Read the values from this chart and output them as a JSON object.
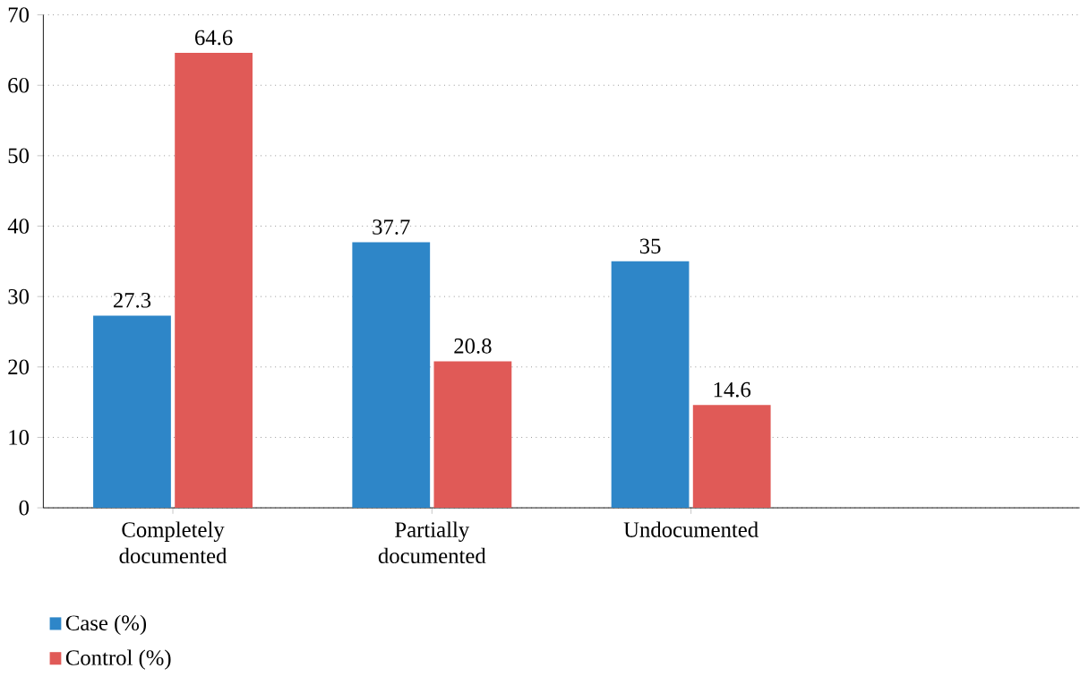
{
  "chart_data": {
    "type": "bar",
    "categories": [
      "Completely documented",
      "Partially documented",
      "Undocumented"
    ],
    "series": [
      {
        "name": "Case (%)",
        "color": "#2e86c8",
        "values": [
          27.3,
          37.7,
          35
        ]
      },
      {
        "name": "Control (%)",
        "color": "#e05a57",
        "values": [
          64.6,
          20.8,
          14.6
        ]
      }
    ],
    "ylim": [
      0,
      70
    ],
    "yticks": [
      0,
      10,
      20,
      30,
      40,
      50,
      60,
      70
    ],
    "grid": "y",
    "legend": "bottom left",
    "data_labels": true
  }
}
